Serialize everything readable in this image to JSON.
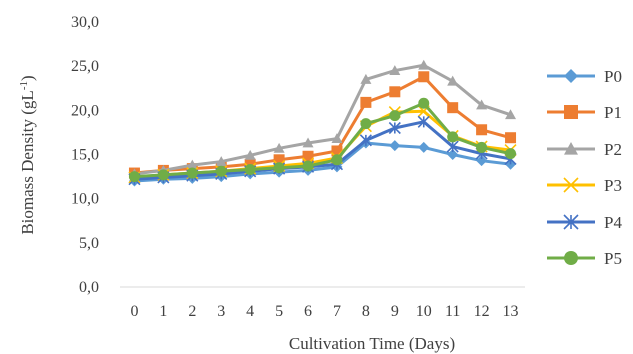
{
  "chart_data": {
    "type": "line",
    "categories": [
      "0",
      "1",
      "2",
      "3",
      "4",
      "5",
      "6",
      "7",
      "8",
      "9",
      "10",
      "11",
      "12",
      "13"
    ],
    "xlabel": "Cultivation Time (Days)",
    "ylabel_main": "Biomass Density (gL",
    "ylabel_sup": "-1",
    "ylabel_close": ")",
    "ylim": [
      0,
      30
    ],
    "yticks": [
      "0,0",
      "5,0",
      "10,0",
      "15,0",
      "20,0",
      "25,0",
      "30,0"
    ],
    "grid": false,
    "legend_position": "right",
    "series": [
      {
        "name": "P0",
        "color": "#5B9BD5",
        "marker": "diamond",
        "values": [
          12.0,
          12.2,
          12.3,
          12.5,
          12.8,
          13.0,
          13.2,
          13.6,
          16.3,
          16.0,
          15.8,
          15.0,
          14.3,
          13.9
        ]
      },
      {
        "name": "P1",
        "color": "#ED7D31",
        "marker": "square",
        "values": [
          12.9,
          13.2,
          13.4,
          13.6,
          13.9,
          14.4,
          14.8,
          15.4,
          20.9,
          22.1,
          23.8,
          20.3,
          17.8,
          16.9
        ]
      },
      {
        "name": "P2",
        "color": "#A5A5A5",
        "marker": "triangle",
        "values": [
          12.8,
          13.2,
          13.8,
          14.2,
          14.9,
          15.7,
          16.3,
          16.8,
          23.5,
          24.5,
          25.1,
          23.3,
          20.6,
          19.5
        ]
      },
      {
        "name": "P3",
        "color": "#FFC000",
        "marker": "x",
        "values": [
          12.4,
          12.7,
          12.9,
          13.1,
          13.4,
          13.7,
          14.0,
          14.6,
          18.2,
          19.8,
          19.9,
          17.1,
          15.9,
          15.5
        ]
      },
      {
        "name": "P4",
        "color": "#4472C4",
        "marker": "asterisk",
        "values": [
          12.2,
          12.4,
          12.6,
          12.8,
          13.1,
          13.4,
          13.6,
          13.9,
          16.6,
          18.0,
          18.7,
          15.9,
          15.1,
          14.5
        ]
      },
      {
        "name": "P5",
        "color": "#70AD47",
        "marker": "circle",
        "values": [
          12.5,
          12.7,
          12.9,
          13.1,
          13.3,
          13.5,
          13.7,
          14.4,
          18.5,
          19.4,
          20.8,
          17.0,
          15.8,
          15.1
        ]
      }
    ]
  }
}
